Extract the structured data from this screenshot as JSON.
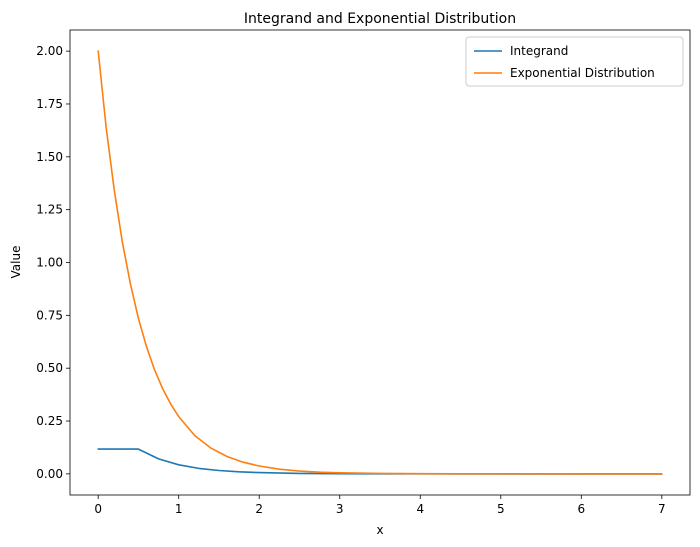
{
  "chart_data": {
    "type": "line",
    "title": "Integrand and Exponential Distribution",
    "xlabel": "x",
    "ylabel": "Value",
    "xlim": [
      -0.35,
      7.35
    ],
    "ylim": [
      -0.1,
      2.1
    ],
    "xticks": [
      0,
      1,
      2,
      3,
      4,
      5,
      6,
      7
    ],
    "xtick_labels": [
      "0",
      "1",
      "2",
      "3",
      "4",
      "5",
      "6",
      "7"
    ],
    "yticks": [
      0,
      0.25,
      0.5,
      0.75,
      1.0,
      1.25,
      1.5,
      1.75,
      2.0
    ],
    "ytick_labels": [
      "0.00",
      "0.25",
      "0.50",
      "0.75",
      "1.00",
      "1.25",
      "1.50",
      "1.75",
      "2.00"
    ],
    "grid": false,
    "legend_position": "top-right",
    "series": [
      {
        "name": "Integrand",
        "color": "#1f77b4",
        "x": [
          0,
          0.25,
          0.5,
          0.75,
          1.0,
          1.25,
          1.5,
          1.75,
          2.0,
          2.5,
          3.0,
          3.5,
          4.0,
          5.0,
          6.0,
          7.0
        ],
        "y": [
          0.117,
          0.117,
          0.117,
          0.071,
          0.043,
          0.026,
          0.016,
          0.01,
          0.006,
          0.002,
          0.001,
          0.0003,
          0.0001,
          0.0,
          0.0,
          0.0
        ]
      },
      {
        "name": "Exponential Distribution",
        "color": "#ff7f0e",
        "x": [
          0,
          0.1,
          0.2,
          0.3,
          0.4,
          0.5,
          0.6,
          0.7,
          0.8,
          0.9,
          1.0,
          1.2,
          1.4,
          1.6,
          1.8,
          2.0,
          2.25,
          2.5,
          2.75,
          3.0,
          3.5,
          4.0,
          4.5,
          5.0,
          6.0,
          7.0
        ],
        "y": [
          2.0,
          1.637,
          1.341,
          1.098,
          0.899,
          0.736,
          0.602,
          0.493,
          0.404,
          0.331,
          0.271,
          0.181,
          0.122,
          0.082,
          0.055,
          0.037,
          0.022,
          0.013,
          0.008,
          0.005,
          0.002,
          0.0007,
          0.0002,
          0.0001,
          0.0,
          0.0
        ]
      }
    ]
  }
}
